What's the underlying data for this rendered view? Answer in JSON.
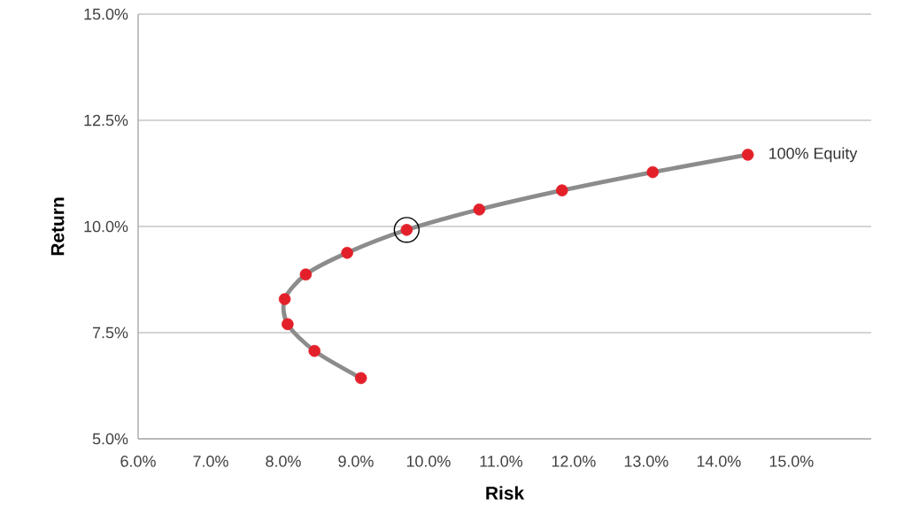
{
  "chart_data": {
    "type": "line",
    "xlabel": "Risk",
    "ylabel": "Return",
    "x": [
      9.07,
      8.43,
      8.06,
      8.02,
      8.31,
      8.88,
      9.7,
      10.7,
      11.84,
      13.09,
      14.4
    ],
    "series": [
      {
        "color": "#8c8c8c",
        "marker": "none",
        "values": [
          6.43,
          7.07,
          7.7,
          8.29,
          8.87,
          9.38,
          9.92,
          10.4,
          10.85,
          11.28,
          11.69
        ]
      },
      {
        "type": "scatter",
        "color": "#e3202a",
        "marker": "circle",
        "values": [
          6.43,
          7.07,
          7.7,
          8.29,
          8.87,
          9.38,
          9.92,
          10.4,
          10.85,
          11.28,
          11.69
        ]
      },
      {
        "type": "scatter",
        "color": "#000000",
        "marker": "circle_open",
        "x": [
          9.7
        ],
        "values": [
          9.92
        ]
      }
    ],
    "annotations": [
      {
        "text": "100% Equity",
        "x": 14.4,
        "y": 11.69
      }
    ],
    "xlim": [
      6,
      16.1
    ],
    "ylim": [
      5,
      15
    ],
    "xticks": [
      {
        "value": 6,
        "label": "6.0%"
      },
      {
        "value": 7,
        "label": "7.0%"
      },
      {
        "value": 8,
        "label": "8.0%"
      },
      {
        "value": 9,
        "label": "9.0%"
      },
      {
        "value": 10,
        "label": "10.0%"
      },
      {
        "value": 11,
        "label": "11.0%"
      },
      {
        "value": 12,
        "label": "12.0%"
      },
      {
        "value": 13,
        "label": "13.0%"
      },
      {
        "value": 14,
        "label": "14.0%"
      },
      {
        "value": 15,
        "label": "15.0%"
      }
    ],
    "yticks": [
      {
        "value": 5,
        "label": "5.0%"
      },
      {
        "value": 7.5,
        "label": "7.5%"
      },
      {
        "value": 10,
        "label": "10.0%"
      },
      {
        "value": 12.5,
        "label": "12.5%"
      },
      {
        "value": 15,
        "label": "15.0%"
      }
    ],
    "grid": "y"
  }
}
